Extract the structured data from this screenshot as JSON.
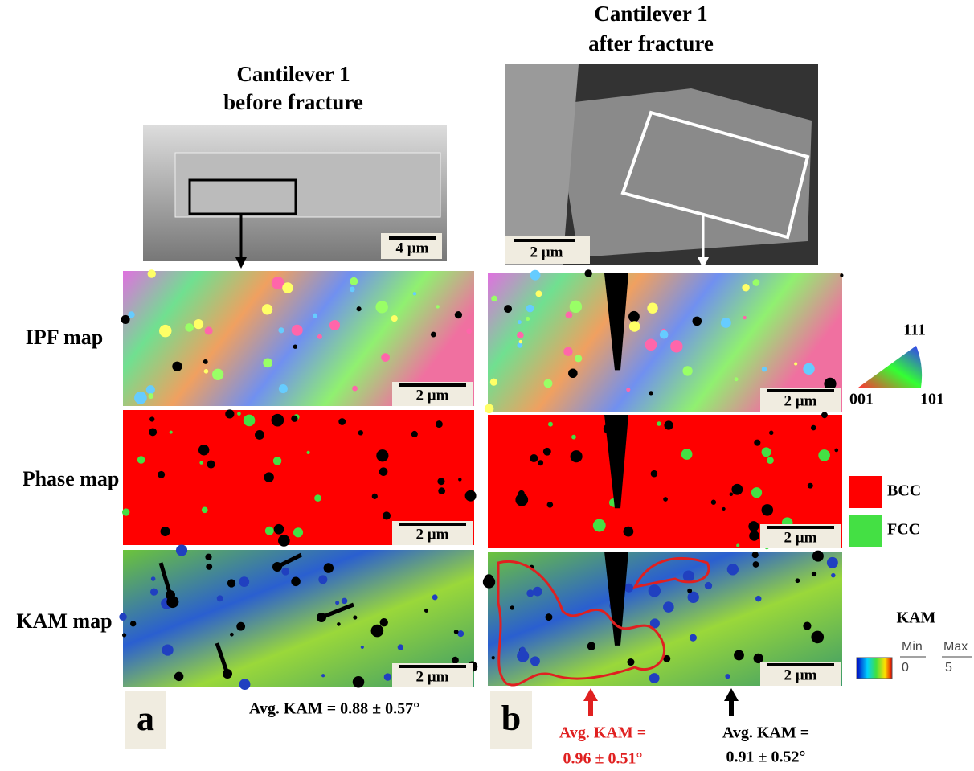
{
  "panel_a": {
    "label": "a",
    "title": [
      "Cantilever 1",
      "before fracture"
    ],
    "sem_scale": "4 µm",
    "map_scales": [
      "2 µm",
      "2 µm",
      "2 µm"
    ],
    "avg_kam": "Avg. KAM = 0.88 ± 0.57°"
  },
  "panel_b": {
    "label": "b",
    "title": [
      "Cantilever 1",
      "after fracture"
    ],
    "sem_scale": "2 µm",
    "map_scales": [
      "2 µm",
      "2 µm",
      "2 µm"
    ],
    "avg_kam_crack": [
      "Avg. KAM =",
      "0.96 ± 0.51°"
    ],
    "avg_kam_far": [
      "Avg. KAM =",
      "0.91 ± 0.52°"
    ]
  },
  "row_labels": [
    "IPF map",
    "Phase map",
    "KAM map"
  ],
  "ipf_legend": [
    "111",
    "001",
    "101"
  ],
  "phase_legend": [
    "BCC",
    "FCC"
  ],
  "kam_legend": {
    "title": "KAM",
    "min_label": "Min",
    "max_label": "Max",
    "min": 0,
    "max": 5
  }
}
